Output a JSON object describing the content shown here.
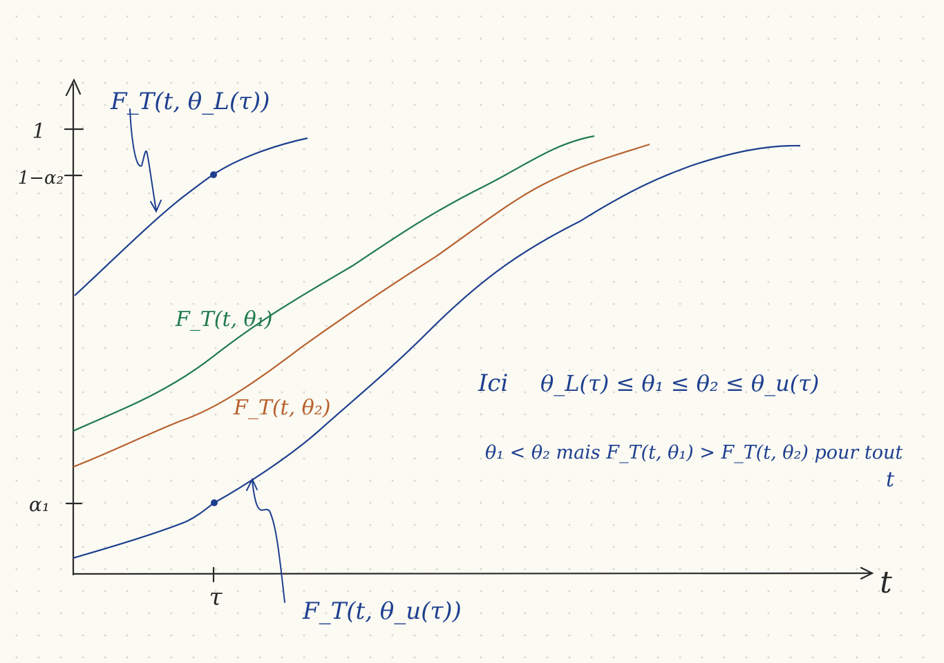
{
  "axes": {
    "x_label": "t",
    "tick_tau": "τ",
    "tick_1": "1",
    "tick_1_minus_alpha2": "1−α₂",
    "tick_alpha1": "α₁"
  },
  "curves": {
    "lower_label": "F_T(t, θ_L(τ))",
    "theta1_label": "F_T(t, θ₁)",
    "theta2_label": "F_T(t, θ₂)",
    "upper_label": "F_T(t, θ_u(τ))"
  },
  "notes": {
    "line1_prefix": "Ici",
    "line1": "θ_L(τ) ≤ θ₁ ≤ θ₂ ≤ θ_u(τ)",
    "line2": "θ₁ < θ₂ mais F_T(t, θ₁) > F_T(t, θ₂) pour tout",
    "line2_cont": "t"
  },
  "colors": {
    "blue": "#1d3f8f",
    "green": "#1f7a4c",
    "orange": "#b8612e",
    "axis": "#2a2a2a"
  }
}
